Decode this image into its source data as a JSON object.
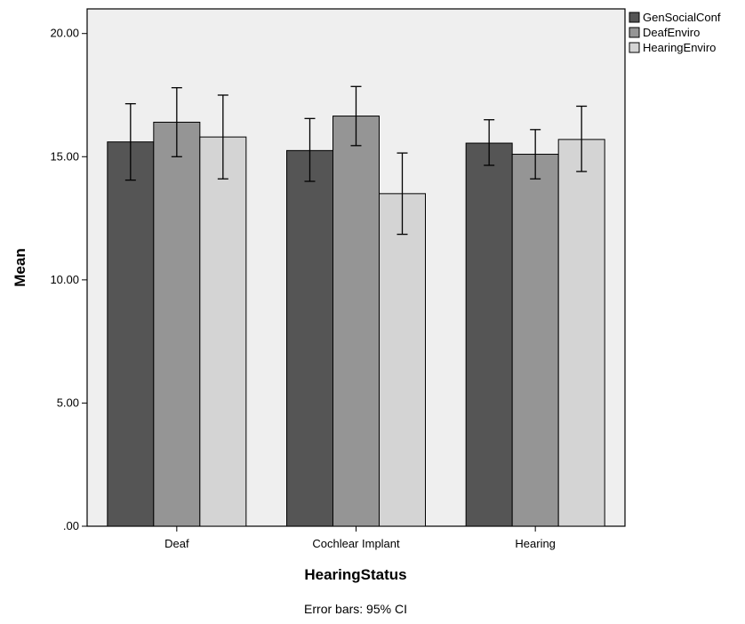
{
  "chart_data": {
    "type": "bar",
    "title": "",
    "xlabel": "HearingStatus",
    "ylabel": "Mean",
    "ylim": [
      0,
      21
    ],
    "y_ticks": [
      0,
      5,
      10,
      15,
      20
    ],
    "y_tick_labels": [
      ".00",
      "5.00",
      "10.00",
      "15.00",
      "20.00"
    ],
    "categories": [
      "Deaf",
      "Cochlear Implant",
      "Hearing"
    ],
    "series": [
      {
        "name": "GenSocialConf",
        "color": "#555555",
        "values": [
          15.6,
          15.25,
          15.55
        ],
        "ci_low": [
          14.05,
          14.0,
          14.65
        ],
        "ci_high": [
          17.15,
          16.55,
          16.5
        ]
      },
      {
        "name": "DeafEnviro",
        "color": "#959595",
        "values": [
          16.4,
          16.65,
          15.1
        ],
        "ci_low": [
          15.0,
          15.45,
          14.1
        ],
        "ci_high": [
          17.8,
          17.85,
          16.1
        ]
      },
      {
        "name": "HearingEnviro",
        "color": "#d4d4d4",
        "values": [
          15.8,
          13.5,
          15.7
        ],
        "ci_low": [
          14.1,
          11.85,
          14.4
        ],
        "ci_high": [
          17.5,
          15.15,
          17.05
        ]
      }
    ],
    "legend_position": "top-right",
    "grid": false,
    "plot_background": "#efefef",
    "footnote": "Error bars: 95% CI"
  }
}
